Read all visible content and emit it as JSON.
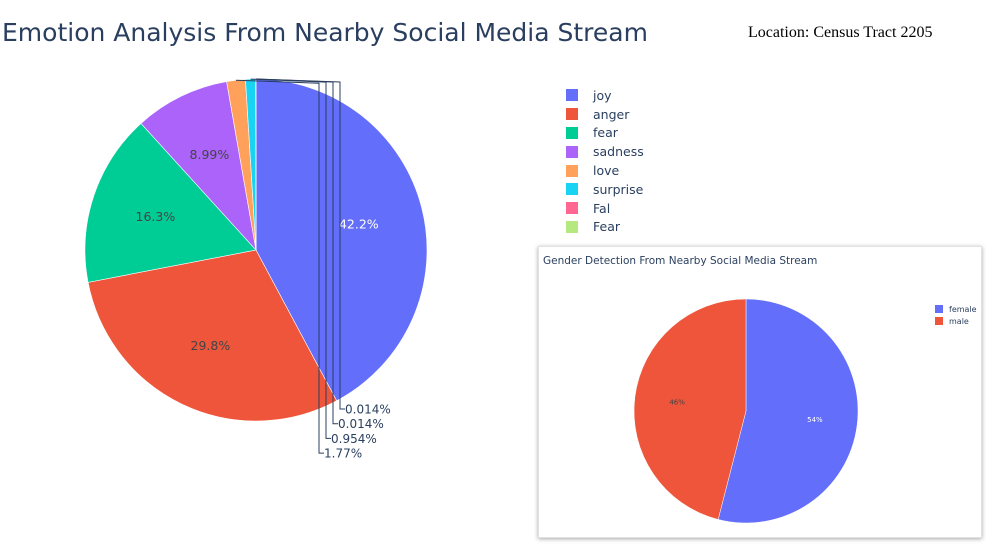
{
  "header": {
    "title": "Emotion Analysis From Nearby Social Media Stream",
    "location": "Location: Census Tract 2205"
  },
  "chart_data": [
    {
      "type": "pie",
      "title": "Emotion Analysis From Nearby Social Media Stream",
      "categories": [
        "joy",
        "anger",
        "fear",
        "sadness",
        "love",
        "surprise",
        "Fal",
        "Fear"
      ],
      "values": [
        42.2,
        29.8,
        16.3,
        8.99,
        1.77,
        0.954,
        0.014,
        0.014
      ],
      "labels": [
        "42.2%",
        "29.8%",
        "16.3%",
        "8.99%",
        "1.77%",
        "0.954%",
        "0.014%",
        "0.014%"
      ],
      "colors": [
        "#636efa",
        "#ef553b",
        "#00cc96",
        "#ab63fa",
        "#ffa15a",
        "#19d3f3",
        "#ff6692",
        "#b6e880"
      ],
      "legend": "top-right"
    },
    {
      "type": "pie",
      "title": "Gender Detection From Nearby Social Media Stream",
      "categories": [
        "female",
        "male"
      ],
      "values": [
        54,
        46
      ],
      "labels": [
        "54%",
        "46%"
      ],
      "colors": [
        "#636efa",
        "#ef553b"
      ],
      "legend": "top-right"
    }
  ]
}
